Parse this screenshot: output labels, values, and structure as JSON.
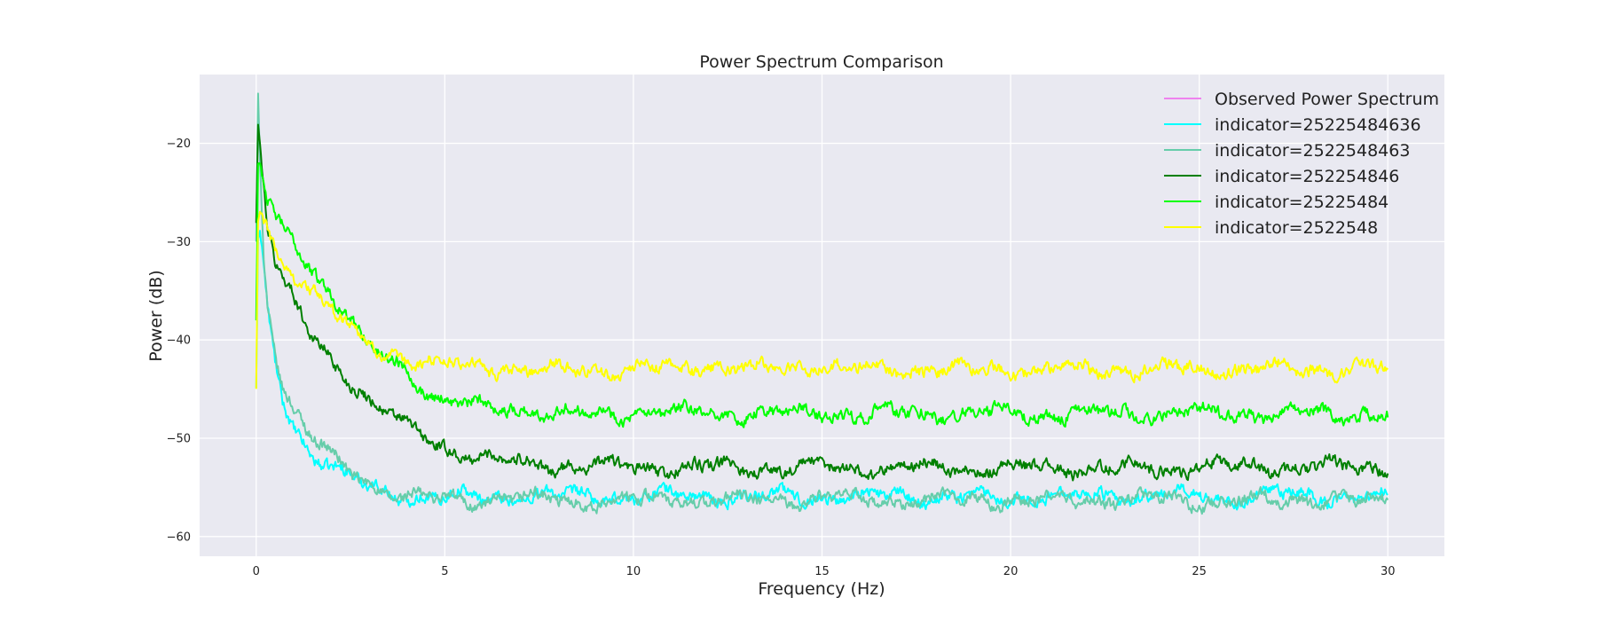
{
  "chart_data": {
    "type": "line",
    "title": "Power Spectrum Comparison",
    "xlabel": "Frequency (Hz)",
    "ylabel": "Power (dB)",
    "xlim": [
      -1.5,
      31.5
    ],
    "ylim": [
      -62,
      -13
    ],
    "xticks": [
      0,
      5,
      10,
      15,
      20,
      25,
      30
    ],
    "yticks": [
      -20,
      -30,
      -40,
      -50,
      -60
    ],
    "grid": true,
    "background": "#e9e9f1",
    "legend_position": "top-right",
    "series": [
      {
        "name": "Observed Power Spectrum",
        "color": "#ee82ee",
        "x": [],
        "y": []
      },
      {
        "name": "indicator=25225484636",
        "color": "#00ffff",
        "x": [
          0,
          0.05,
          0.1,
          0.2,
          0.3,
          0.5,
          0.7,
          1,
          1.5,
          2,
          2.5,
          3,
          3.5,
          4,
          5,
          6,
          7,
          8,
          9,
          10,
          11,
          12,
          13,
          14,
          15,
          16,
          17,
          18,
          19,
          20,
          21,
          22,
          23,
          24,
          25,
          26,
          27,
          28,
          29,
          30
        ],
        "y": [
          -45,
          -30,
          -29,
          -33,
          -37,
          -42,
          -46,
          -49,
          -51.5,
          -53,
          -54,
          -55,
          -55.5,
          -55.8,
          -56,
          -56,
          -55.8,
          -55.9,
          -56,
          -56,
          -55.8,
          -55.9,
          -56,
          -55.8,
          -55.9,
          -56,
          -55.8,
          -55.9,
          -56,
          -56,
          -55.8,
          -55.9,
          -56,
          -55.8,
          -55.9,
          -56,
          -55.8,
          -55.9,
          -56,
          -56
        ]
      },
      {
        "name": "indicator=2522548463",
        "color": "#66cdaa",
        "x": [
          0,
          0.05,
          0.1,
          0.2,
          0.3,
          0.5,
          0.7,
          1,
          1.5,
          2,
          2.5,
          3,
          3.5,
          4,
          5,
          6,
          7,
          8,
          9,
          10,
          11,
          12,
          13,
          14,
          15,
          16,
          17,
          18,
          19,
          20,
          21,
          22,
          23,
          24,
          25,
          26,
          27,
          28,
          29,
          30
        ],
        "y": [
          -30,
          -15,
          -22,
          -31,
          -36,
          -41,
          -44.5,
          -47,
          -50,
          -52,
          -53.5,
          -54.5,
          -55.5,
          -56,
          -56.3,
          -56.3,
          -56.2,
          -56.3,
          -56.4,
          -56.3,
          -56.2,
          -56.3,
          -56.4,
          -56.3,
          -56.2,
          -56.3,
          -56.4,
          -56.3,
          -56.2,
          -56.3,
          -56.4,
          -56.3,
          -56.2,
          -56.3,
          -56.4,
          -56.3,
          -56.2,
          -56.3,
          -56.4,
          -56.4
        ]
      },
      {
        "name": "indicator=252254846",
        "color": "#008000",
        "x": [
          0,
          0.05,
          0.1,
          0.2,
          0.3,
          0.5,
          0.7,
          1,
          1.5,
          2,
          2.5,
          3,
          3.5,
          4,
          5,
          6,
          7,
          8,
          9,
          10,
          11,
          12,
          13,
          14,
          15,
          16,
          17,
          18,
          19,
          20,
          21,
          22,
          23,
          24,
          25,
          26,
          27,
          28,
          29,
          30
        ],
        "y": [
          -28,
          -18,
          -20,
          -24,
          -28,
          -32,
          -34,
          -36,
          -40,
          -42,
          -44,
          -46,
          -47.5,
          -49,
          -51,
          -52,
          -52.5,
          -52.8,
          -52.8,
          -53,
          -53,
          -53,
          -53,
          -53,
          -53,
          -53,
          -53,
          -53,
          -53,
          -53,
          -53,
          -53,
          -53,
          -53,
          -53,
          -53,
          -53,
          -53,
          -53,
          -53
        ]
      },
      {
        "name": "indicator=25225484",
        "color": "#00ff00",
        "x": [
          0,
          0.05,
          0.1,
          0.2,
          0.3,
          0.5,
          0.7,
          1,
          1.5,
          2,
          2.5,
          3,
          3.5,
          4,
          4.5,
          5,
          5.5,
          6,
          7,
          8,
          9,
          10,
          11,
          12,
          13,
          14,
          15,
          16,
          17,
          18,
          19,
          20,
          21,
          22,
          23,
          24,
          25,
          26,
          27,
          28,
          29,
          30
        ],
        "y": [
          -38,
          -22,
          -22,
          -24,
          -26,
          -28,
          -29,
          -30,
          -33,
          -35,
          -38,
          -41,
          -42,
          -43,
          -45,
          -46,
          -46.5,
          -47,
          -47,
          -47.3,
          -47.5,
          -47.5,
          -47.5,
          -47.5,
          -47.5,
          -47.5,
          -47.5,
          -47.5,
          -47.5,
          -47.5,
          -47.5,
          -47.5,
          -47.5,
          -47.5,
          -47.5,
          -47.5,
          -47.5,
          -47.5,
          -47.5,
          -47.5,
          -47.5,
          -47.5
        ]
      },
      {
        "name": "indicator=2522548",
        "color": "#ffff00",
        "x": [
          0,
          0.05,
          0.1,
          0.2,
          0.3,
          0.5,
          0.7,
          1,
          1.5,
          2,
          2.5,
          3,
          3.5,
          4,
          5,
          6,
          7,
          8,
          9,
          10,
          11,
          12,
          13,
          14,
          15,
          16,
          17,
          18,
          19,
          20,
          21,
          22,
          23,
          24,
          25,
          26,
          27,
          28,
          29,
          30
        ],
        "y": [
          -45,
          -28,
          -27,
          -28,
          -29,
          -31,
          -32,
          -33,
          -35,
          -37,
          -39,
          -40.5,
          -41.5,
          -42,
          -42.5,
          -42.8,
          -43,
          -43,
          -43,
          -43,
          -43,
          -42.5,
          -43,
          -43,
          -42.5,
          -43,
          -43,
          -43,
          -43,
          -43,
          -43,
          -43,
          -43,
          -43,
          -43,
          -43,
          -43,
          -43,
          -43,
          -43
        ]
      }
    ]
  }
}
